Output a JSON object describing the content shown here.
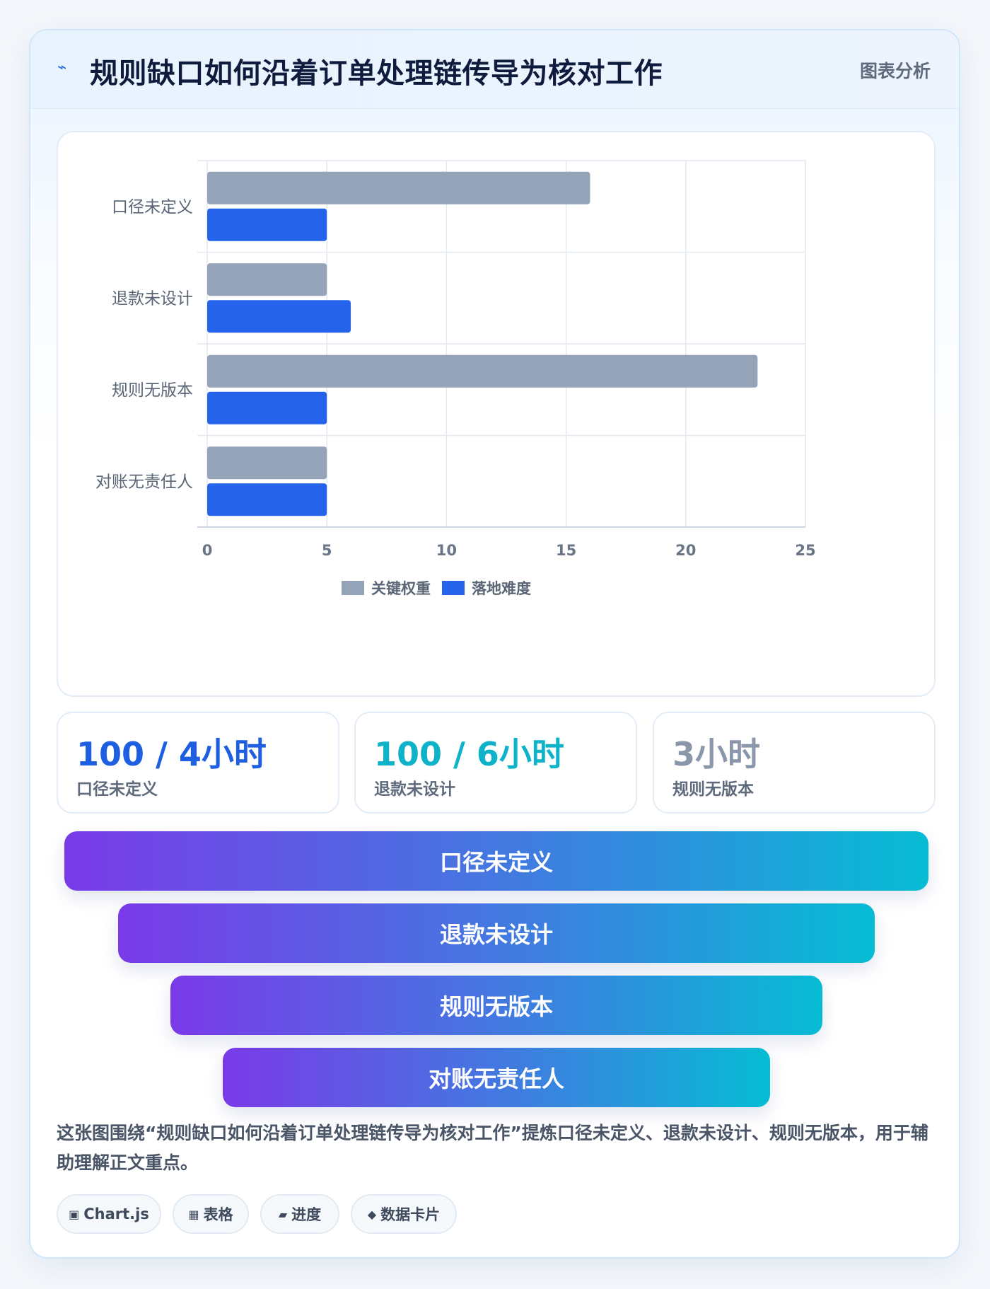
{
  "header": {
    "icon": "lightning-icon",
    "title": "规则缺口如何沿着订单处理链传导为核对工作",
    "tag": "图表分析"
  },
  "chart_data": {
    "type": "bar",
    "orientation": "horizontal",
    "categories": [
      "口径未定义",
      "退款未设计",
      "规则无版本",
      "对账无责任人"
    ],
    "series": [
      {
        "name": "关键权重",
        "values": [
          16,
          5,
          23,
          5
        ],
        "color": "#94a3b8"
      },
      {
        "name": "落地难度",
        "values": [
          5,
          6,
          5,
          5
        ],
        "color": "#2563eb"
      }
    ],
    "xlim": [
      0,
      25
    ],
    "xticks": [
      0,
      5,
      10,
      15,
      20,
      25
    ],
    "grid": true,
    "legend_position": "bottom"
  },
  "stats": [
    {
      "value": "100 / 4小时",
      "label": "口径未定义",
      "color": "#1d5fe0"
    },
    {
      "value": "100 / 6小时",
      "label": "退款未设计",
      "color": "#0fb3c9"
    },
    {
      "value": "3小时",
      "label": "规则无版本",
      "color": "#8a97ab"
    }
  ],
  "funnel": [
    {
      "label": "口径未定义"
    },
    {
      "label": "退款未设计"
    },
    {
      "label": "规则无版本"
    },
    {
      "label": "对账无责任人"
    }
  ],
  "summary": "这张图围绕“规则缺口如何沿着订单处理链传导为核对工作”提炼口径未定义、退款未设计、规则无版本，用于辅助理解正文重点。",
  "chips": [
    {
      "icon": "square-icon",
      "glyph": "▣",
      "label": "Chart.js"
    },
    {
      "icon": "table-icon",
      "glyph": "▦",
      "label": "表格"
    },
    {
      "icon": "progress-icon",
      "glyph": "▰",
      "label": "进度"
    },
    {
      "icon": "diamond-icon",
      "glyph": "◆",
      "label": "数据卡片"
    }
  ]
}
